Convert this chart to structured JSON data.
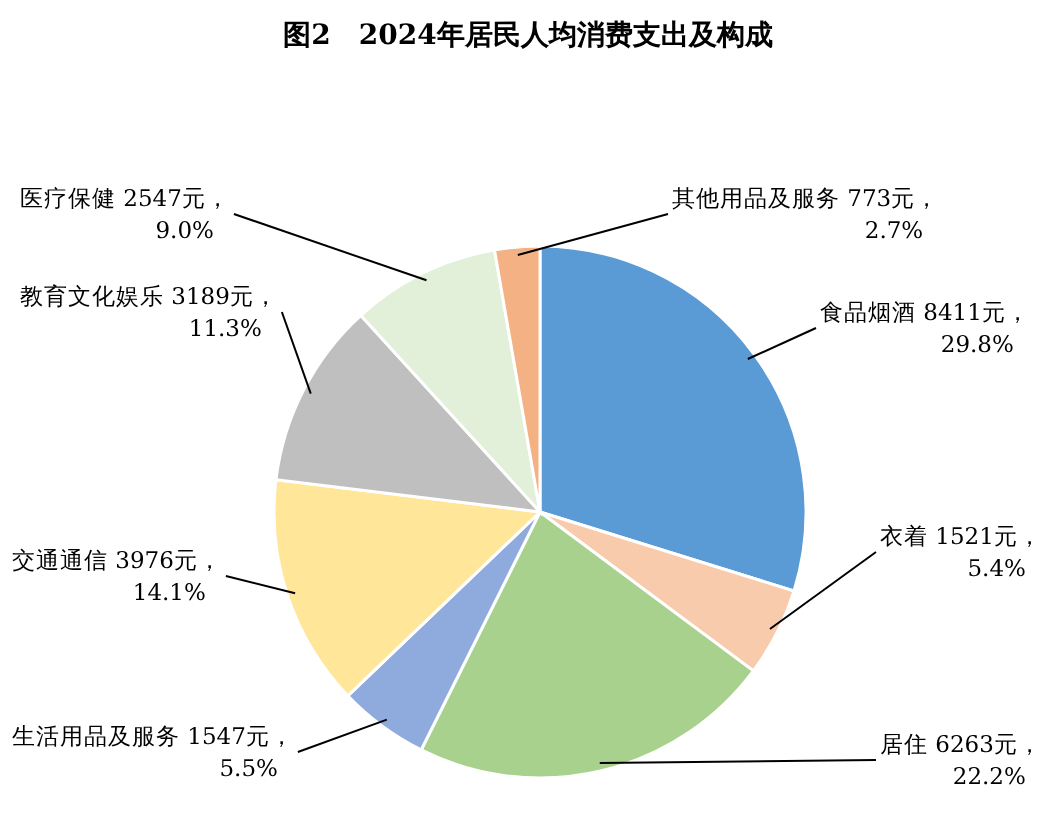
{
  "chart_data": {
    "type": "pie",
    "title": "图2　2024年居民人均消费支出及构成",
    "categories": [
      "食品烟酒",
      "衣着",
      "居住",
      "生活用品及服务",
      "交通通信",
      "教育文化娱乐",
      "医疗保健",
      "其他用品及服务"
    ],
    "values": [
      8411,
      1521,
      6263,
      1547,
      3976,
      3189,
      2547,
      773
    ],
    "value_labels": [
      "8411元，\n29.8%",
      "1521元，\n5.4%",
      "6263元，\n22.2%",
      "1547元，\n5.5%",
      "3976元，\n14.1%",
      "3189元，\n11.3%",
      "2547元，\n9.0%",
      "773元，\n2.7%"
    ],
    "colors": [
      "#5b9bd5",
      "#f8cbad",
      "#a9d18e",
      "#8faadc",
      "#ffe699",
      "#bfbfbf",
      "#e2efd9",
      "#f4b183"
    ]
  }
}
